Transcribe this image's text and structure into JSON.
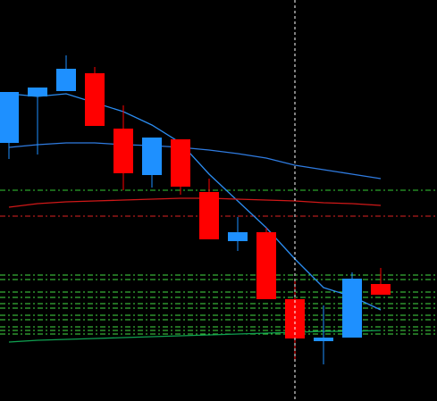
{
  "chart_data": {
    "type": "candlestick",
    "ylim": [
      0,
      449
    ],
    "up_color": "#1e90ff",
    "down_color": "#ff0000",
    "open": [
      289,
      341,
      347,
      367,
      305,
      253,
      293,
      234,
      179,
      189,
      114,
      67,
      71,
      131
    ],
    "high": [
      346,
      351,
      387,
      374,
      331,
      295,
      293,
      249,
      206,
      194,
      134,
      107,
      144,
      149
    ],
    "low": [
      271,
      276,
      347,
      308,
      236,
      239,
      231,
      181,
      168,
      114,
      47,
      41,
      71,
      119
    ],
    "close": [
      346,
      351,
      372,
      308,
      255,
      295,
      240,
      181,
      189,
      114,
      70,
      71,
      137,
      119
    ],
    "lines": [
      {
        "color": "#2b8cf0",
        "values": [
          344,
          341,
          344,
          334,
          324,
          309,
          289,
          254,
          224,
          194,
          159,
          127,
          117,
          102
        ]
      },
      {
        "color": "#2f7be0",
        "values": [
          284,
          287,
          289,
          289,
          287,
          286,
          284,
          281,
          277,
          272,
          264,
          259,
          254,
          249
        ]
      },
      {
        "color": "#d01818",
        "values": [
          217,
          221,
          223,
          224,
          225,
          226,
          227,
          227,
          226,
          225,
          224,
          222,
          221,
          219
        ]
      },
      {
        "color": "#10a050",
        "values": [
          66,
          68,
          69,
          70,
          71,
          72,
          73,
          74,
          75,
          76,
          77,
          78,
          78,
          79
        ]
      }
    ],
    "levels": [
      {
        "value": 236,
        "color": "#33cc33"
      },
      {
        "value": 207,
        "color": "#dd2222"
      },
      {
        "value": 141,
        "color": "#44dd44"
      },
      {
        "value": 136,
        "color": "#44dd44"
      },
      {
        "value": 122,
        "color": "#44dd44"
      },
      {
        "value": 116,
        "color": "#44dd44"
      },
      {
        "value": 109,
        "color": "#44dd44"
      },
      {
        "value": 104,
        "color": "#44dd44"
      },
      {
        "value": 96,
        "color": "#44dd44"
      },
      {
        "value": 91,
        "color": "#44dd44"
      },
      {
        "value": 83,
        "color": "#44dd44"
      },
      {
        "value": 79,
        "color": "#44dd44"
      },
      {
        "value": 75,
        "color": "#44dd44"
      }
    ],
    "cursor_index": 10
  }
}
